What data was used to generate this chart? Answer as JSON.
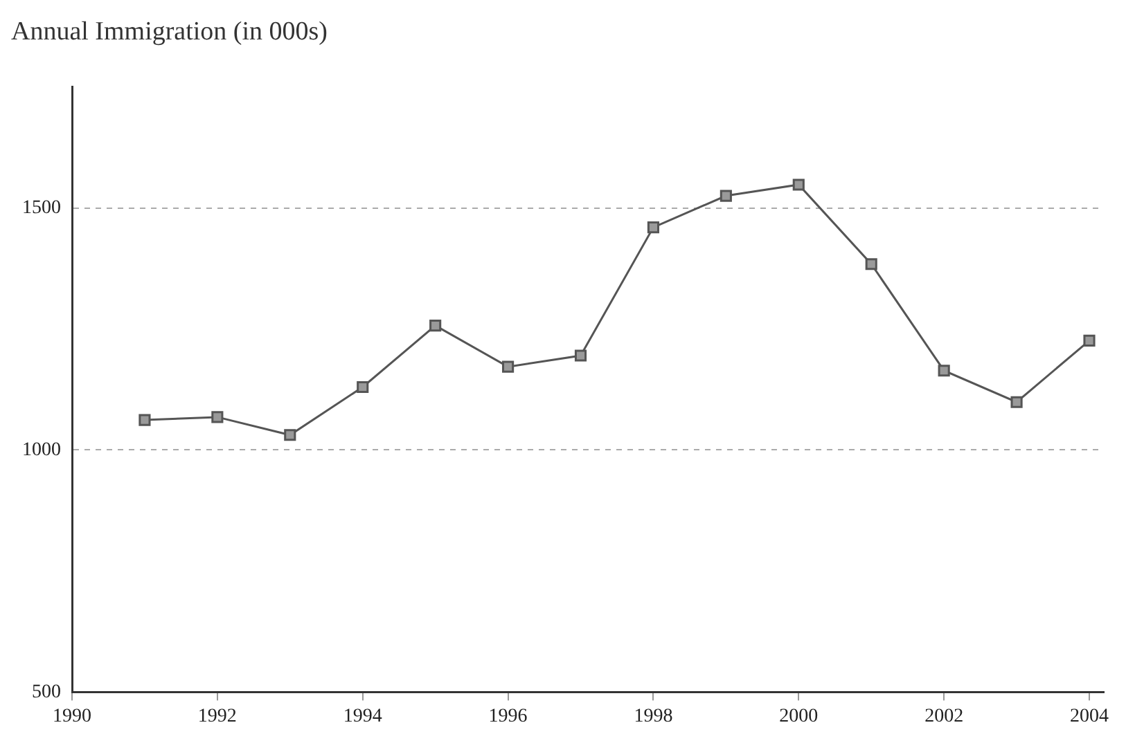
{
  "chart_data": {
    "type": "line",
    "title": "Annual Immigration (in 000s)",
    "x": [
      1991,
      1992,
      1993,
      1994,
      1995,
      1996,
      1997,
      1998,
      1999,
      2000,
      2001,
      2002,
      2003,
      2004
    ],
    "series": [
      {
        "color": "#555555",
        "values": [
          1062,
          1068,
          1031,
          1130,
          1257,
          1172,
          1195,
          1460,
          1525,
          1548,
          1384,
          1164,
          1099,
          1226
        ]
      }
    ],
    "xlim": [
      1990,
      2004.2
    ],
    "xticks": [
      1990,
      1992,
      1994,
      1996,
      1998,
      2000,
      2002,
      2004
    ],
    "ylim": [
      500,
      1750
    ],
    "yticks": [
      500,
      1000,
      1500
    ],
    "grid": "y",
    "legend": false,
    "marker": "square",
    "line_style": "solid"
  }
}
